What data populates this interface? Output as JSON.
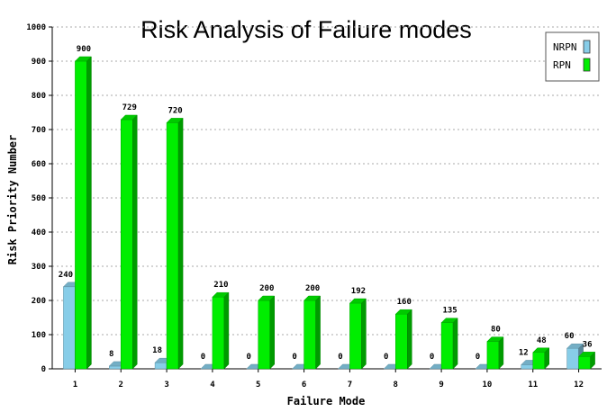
{
  "chart_data": {
    "type": "bar",
    "title": "Risk Analysis of Failure modes",
    "xlabel": "Failure Mode",
    "ylabel": "Risk Priority Number",
    "ylim": [
      0,
      1000
    ],
    "yticks": [
      "0",
      "100",
      "200",
      "300",
      "400",
      "500",
      "600",
      "700",
      "800",
      "900",
      "1000"
    ],
    "categories": [
      "1",
      "2",
      "3",
      "4",
      "5",
      "6",
      "7",
      "8",
      "9",
      "10",
      "11",
      "12"
    ],
    "series": [
      {
        "name": "NRPN",
        "color": "#87cde8",
        "values": [
          240,
          8,
          18,
          0,
          0,
          0,
          0,
          0,
          0,
          0,
          12,
          60
        ]
      },
      {
        "name": "RPN",
        "color": "#00ee00",
        "values": [
          900,
          729,
          720,
          210,
          200,
          200,
          192,
          160,
          135,
          80,
          48,
          36
        ]
      }
    ],
    "grid": true,
    "legend_position": "top-right"
  }
}
